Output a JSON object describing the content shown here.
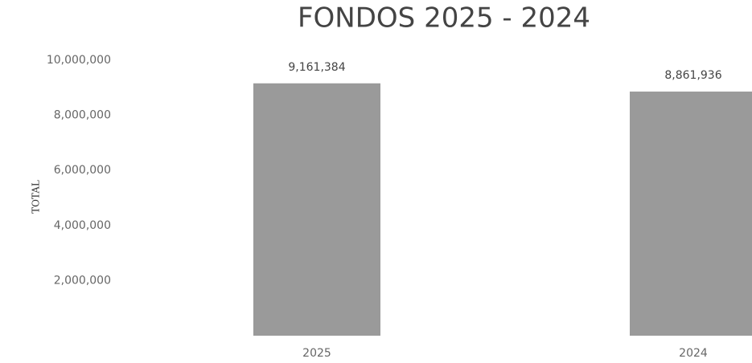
{
  "chart_data": {
    "type": "bar",
    "title": "FONDOS 2025 - 2024",
    "y_label": "TOTAL",
    "categories": [
      "2025",
      "2024"
    ],
    "values": [
      9161384,
      8861936
    ],
    "value_labels": [
      "9,161,384",
      "8,861,936"
    ],
    "color": "#9a9a9a",
    "ylim": [
      0,
      10000000
    ],
    "yticks": [
      {
        "value": 2000000,
        "label": "2,000,000"
      },
      {
        "value": 4000000,
        "label": "4,000,000"
      },
      {
        "value": 6000000,
        "label": "6,000,000"
      },
      {
        "value": 8000000,
        "label": "8,000,000"
      },
      {
        "value": 10000000,
        "label": "10,000,000"
      }
    ],
    "grid": false
  }
}
